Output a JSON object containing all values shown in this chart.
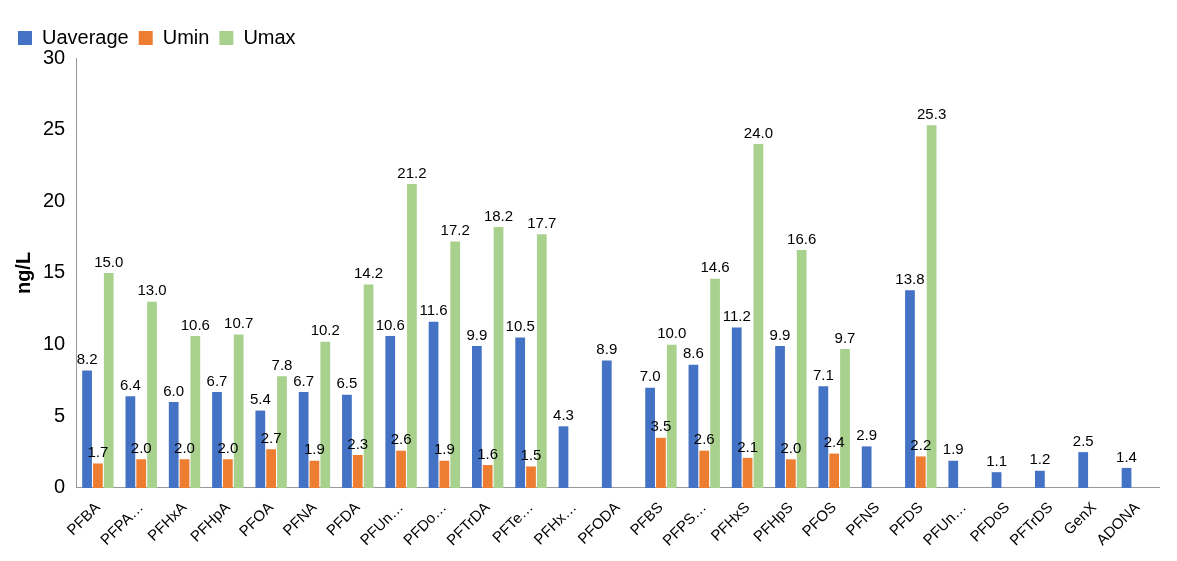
{
  "chart_data": {
    "type": "bar",
    "ylabel": "ng/L",
    "categories": [
      "PFBA",
      "PFPA…",
      "PFHxA",
      "PFHpA",
      "PFOA",
      "PFNA",
      "PFDA",
      "PFUn…",
      "PFDo…",
      "PFTrDA",
      "PFTe…",
      "PFHx…",
      "PFODA",
      "PFBS",
      "PFPS…",
      "PFHxS",
      "PFHpS",
      "PFOS",
      "PFNS",
      "PFDS",
      "PFUn…",
      "PFDoS",
      "PFTrDS",
      "GenX",
      "ADONA"
    ],
    "series": [
      {
        "name": "Uaverage",
        "color": "#4472c4",
        "values": [
          8.2,
          6.4,
          6.0,
          6.7,
          5.4,
          6.7,
          6.5,
          10.6,
          11.6,
          9.9,
          10.5,
          4.3,
          8.9,
          7.0,
          8.6,
          11.2,
          9.9,
          7.1,
          2.9,
          13.8,
          1.9,
          1.1,
          1.2,
          2.5,
          1.4
        ],
        "value_labels": [
          "8.2",
          "6.4",
          "6.0",
          "6.7",
          "5.4",
          "6.7",
          "6.5",
          "10.6",
          "11.6",
          "9.9",
          "10.5",
          "4.3",
          "8.9",
          "7.0",
          "8.6",
          "11.2",
          "9.9",
          "7.1",
          "2.9",
          "13.8",
          "1.9",
          "1.1",
          "1.2",
          "2.5",
          "1.4"
        ]
      },
      {
        "name": "Umin",
        "color": "#ed7d31",
        "values": [
          1.7,
          2.0,
          2.0,
          2.0,
          2.7,
          1.9,
          2.3,
          2.6,
          1.9,
          1.6,
          1.5,
          null,
          null,
          3.5,
          2.6,
          2.1,
          2.0,
          2.4,
          null,
          2.2,
          null,
          null,
          null,
          null,
          null
        ],
        "value_labels": [
          "1.7",
          "2.0",
          "2.0",
          "2.0",
          "2.7",
          "1.9",
          "2.3",
          "2.6",
          "1.9",
          "1.6",
          "1.5",
          null,
          null,
          "3.5",
          "2.6",
          "2.1",
          "2.0",
          "2.4",
          null,
          "2.2",
          null,
          null,
          null,
          null,
          null
        ]
      },
      {
        "name": "Umax",
        "color": "#a9d18e",
        "values": [
          15.0,
          13.0,
          10.6,
          10.7,
          7.8,
          10.2,
          14.2,
          21.2,
          17.2,
          18.2,
          17.7,
          null,
          null,
          10.0,
          14.6,
          24.0,
          16.6,
          9.7,
          null,
          25.3,
          null,
          null,
          null,
          null,
          null
        ],
        "value_labels": [
          "15.0",
          "13.0",
          "10.6",
          "10.7",
          "7.8",
          "10.2",
          "14.2",
          "21.2",
          "17.2",
          "18.2",
          "17.7",
          null,
          null,
          "10.0",
          "14.6",
          "24.0",
          "16.6",
          "9.7",
          null,
          "25.3",
          null,
          null,
          null,
          null,
          null
        ]
      }
    ],
    "ylim": [
      0,
      30
    ],
    "yticks": [
      0,
      5,
      10,
      15,
      20,
      25,
      30
    ],
    "grid": false,
    "legend": "top left"
  }
}
